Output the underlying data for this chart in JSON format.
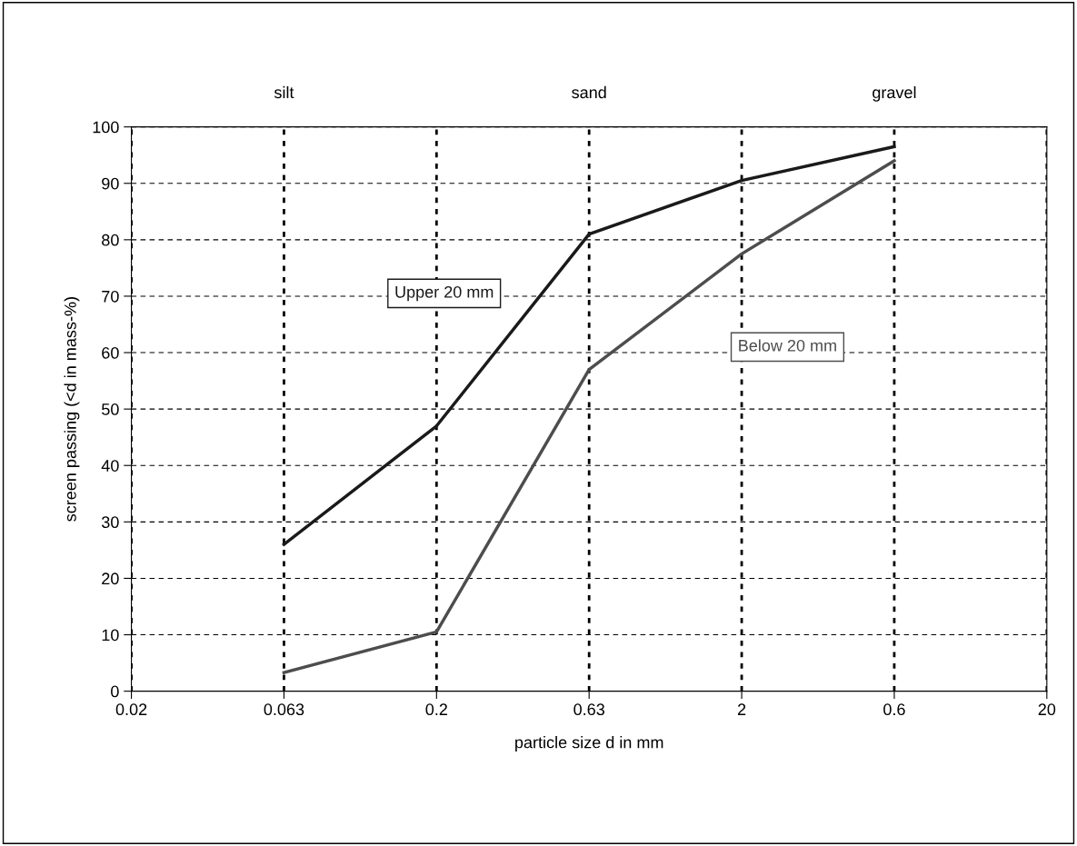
{
  "chart_data": {
    "type": "line",
    "xlabel": "particle size d in mm",
    "ylabel": "screen passing (<d in mass-%)",
    "categories": [
      "0.02",
      "0.063",
      "0.2",
      "0.63",
      "2",
      "0.6",
      "20"
    ],
    "series": [
      {
        "name": "Upper 20 mm",
        "color": "#1a1a1a",
        "values": [
          null,
          26,
          47,
          81,
          90.5,
          96.5,
          null
        ]
      },
      {
        "name": "Below 20 mm",
        "color": "#4d4d4d",
        "values": [
          null,
          3.3,
          10.5,
          57,
          77.5,
          94,
          null
        ]
      }
    ],
    "ylim": [
      0,
      100
    ],
    "yticks": [
      0,
      10,
      20,
      30,
      40,
      50,
      60,
      70,
      80,
      90,
      100
    ],
    "grid": true,
    "legend": false,
    "marker": "none",
    "line_style": "solid",
    "annotations": [
      "silt",
      "sand",
      "gravel"
    ]
  }
}
